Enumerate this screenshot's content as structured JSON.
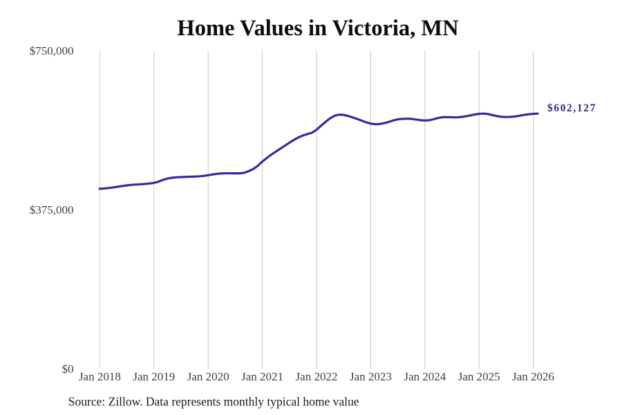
{
  "chart_data": {
    "type": "line",
    "title": "Home Values in Victoria, MN",
    "end_label": "$602,127",
    "x_ticks": [
      "Jan 2018",
      "Jan 2019",
      "Jan 2020",
      "Jan 2021",
      "Jan 2022",
      "Jan 2023",
      "Jan 2024",
      "Jan 2025",
      "Jan 2026"
    ],
    "y_ticks": [
      {
        "label": "$0",
        "value": 0
      },
      {
        "label": "$375,000",
        "value": 375000
      },
      {
        "label": "$750,000",
        "value": 750000
      }
    ],
    "ylim": [
      0,
      750000
    ],
    "grid": "vertical-only",
    "legend": "none",
    "series": [
      {
        "name": "Typical home value",
        "x": [
          "2018-01",
          "2018-02",
          "2018-03",
          "2018-04",
          "2018-05",
          "2018-06",
          "2018-07",
          "2018-08",
          "2018-09",
          "2018-10",
          "2018-11",
          "2018-12",
          "2019-01",
          "2019-02",
          "2019-03",
          "2019-04",
          "2019-05",
          "2019-06",
          "2019-07",
          "2019-08",
          "2019-09",
          "2019-10",
          "2019-11",
          "2019-12",
          "2020-01",
          "2020-02",
          "2020-03",
          "2020-04",
          "2020-05",
          "2020-06",
          "2020-07",
          "2020-08",
          "2020-09",
          "2020-10",
          "2020-11",
          "2020-12",
          "2021-01",
          "2021-02",
          "2021-03",
          "2021-04",
          "2021-05",
          "2021-06",
          "2021-07",
          "2021-08",
          "2021-09",
          "2021-10",
          "2021-11",
          "2021-12",
          "2022-01",
          "2022-02",
          "2022-03",
          "2022-04",
          "2022-05",
          "2022-06",
          "2022-07",
          "2022-08",
          "2022-09",
          "2022-10",
          "2022-11",
          "2022-12",
          "2023-01",
          "2023-02",
          "2023-03",
          "2023-04",
          "2023-05",
          "2023-06",
          "2023-07",
          "2023-08",
          "2023-09",
          "2023-10",
          "2023-11",
          "2023-12",
          "2024-01",
          "2024-02",
          "2024-03",
          "2024-04",
          "2024-05",
          "2024-06",
          "2024-07",
          "2024-08",
          "2024-09",
          "2024-10",
          "2024-11",
          "2024-12",
          "2025-01",
          "2025-02",
          "2025-03",
          "2025-04",
          "2025-05",
          "2025-06",
          "2025-07",
          "2025-08",
          "2025-09",
          "2025-10",
          "2025-11",
          "2025-12",
          "2026-01",
          "2026-02"
        ],
        "values": [
          424800,
          425600,
          426700,
          428100,
          429700,
          431300,
          432900,
          434000,
          434800,
          435400,
          436200,
          437300,
          438700,
          441600,
          445900,
          448900,
          450800,
          451900,
          452400,
          452900,
          453300,
          453700,
          454200,
          455200,
          456800,
          458700,
          460200,
          461000,
          461300,
          461300,
          461200,
          461200,
          462500,
          466500,
          471500,
          479000,
          489000,
          497500,
          505500,
          512500,
          519500,
          526500,
          533500,
          540000,
          546000,
          550500,
          553800,
          557000,
          564000,
          573500,
          582500,
          591000,
          597000,
          599600,
          599000,
          596500,
          593000,
          589500,
          585500,
          581500,
          578500,
          577000,
          577600,
          579500,
          582500,
          586000,
          588500,
          589600,
          590100,
          589600,
          588100,
          586600,
          585800,
          586500,
          589000,
          592000,
          593700,
          593800,
          593400,
          593200,
          594100,
          595600,
          597600,
          599800,
          601500,
          602100,
          601000,
          598500,
          596100,
          594500,
          594000,
          594300,
          595300,
          597000,
          599100,
          600400,
          601500,
          602127
        ]
      }
    ],
    "colors": {
      "line": "#322b9b",
      "end_label": "#2b2a85",
      "grid": "#c9c9c9",
      "tick_text": "#404040",
      "title_text": "#0d0d0d",
      "source_text": "#1a1a1a",
      "background": "#ffffff"
    },
    "layout": {
      "plot_left": 144.4,
      "plot_right": 771.6,
      "plot_top": 73.5,
      "plot_bottom": 533.5,
      "tick_spacing": 78.4,
      "line_width": 3.2,
      "title_x": 460,
      "title_baseline": 51,
      "ytick_right_x": 106.5,
      "xtick_baseline": 549.8,
      "source_x": 98.8,
      "source_baseline": 586.5,
      "end_label_x": 792,
      "end_label_baseline": 161
    }
  },
  "footer": {
    "source_text": "Source: Zillow. Data represents monthly typical home value"
  }
}
